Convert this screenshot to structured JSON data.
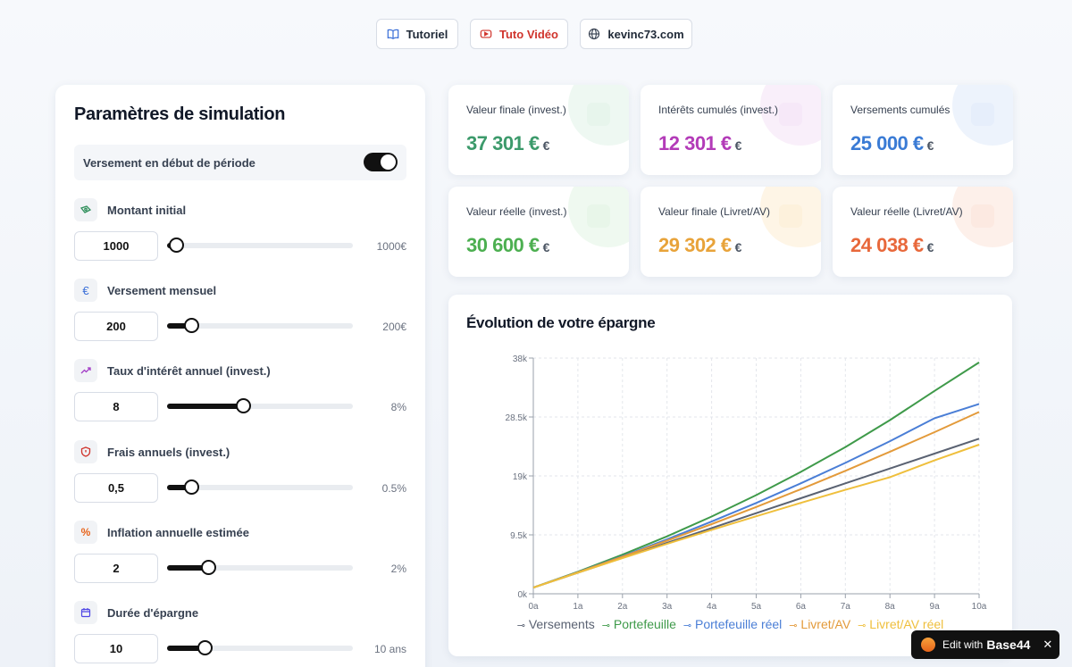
{
  "top_nav": {
    "tutorial": "Tutoriel",
    "video": "Tuto Vidéo",
    "site": "kevinc73.com"
  },
  "params": {
    "title": "Paramètres de simulation",
    "toggle_label": "Versement en début de période",
    "toggle_on": true,
    "items": [
      {
        "label": "Montant initial",
        "input": "1000",
        "value_text": "1000€",
        "level": 0.05,
        "icon": "money-icon",
        "icon_color": "#2f8f5b"
      },
      {
        "label": "Versement mensuel",
        "input": "200",
        "value_text": "200€",
        "level": 0.13,
        "icon": "euro-icon",
        "icon_color": "#3a6fd8"
      },
      {
        "label": "Taux d'intérêt annuel (invest.)",
        "input": "8",
        "value_text": "8%",
        "level": 0.41,
        "icon": "trending-up-icon",
        "icon_color": "#a23cc6"
      },
      {
        "label": "Frais annuels (invest.)",
        "input": "0,5",
        "value_text": "0.5%",
        "level": 0.13,
        "icon": "shield-icon",
        "icon_color": "#d0342c"
      },
      {
        "label": "Inflation annuelle estimée",
        "input": "2",
        "value_text": "2%",
        "level": 0.22,
        "icon": "percent-icon",
        "icon_color": "#e8641b"
      },
      {
        "label": "Durée d'épargne",
        "input": "10",
        "value_text": "10 ans",
        "level": 0.2,
        "icon": "calendar-icon",
        "icon_color": "#4f46e5"
      }
    ]
  },
  "cards": [
    {
      "label": "Valeur finale (invest.)",
      "value": "37 301 €",
      "unit": "€",
      "color": "#3c9a6b",
      "tint": "#e7f5ec"
    },
    {
      "label": "Intérêts cumulés (invest.)",
      "value": "12 301 €",
      "unit": "€",
      "color": "#b33bb8",
      "tint": "#f6e8f8"
    },
    {
      "label": "Versements cumulés",
      "value": "25 000 €",
      "unit": "€",
      "color": "#3a7bd5",
      "tint": "#e6eefb"
    },
    {
      "label": "Valeur réelle (invest.)",
      "value": "30 600 €",
      "unit": "€",
      "color": "#4caf50",
      "tint": "#e8f6e9"
    },
    {
      "label": "Valeur finale (Livret/AV)",
      "value": "29 302 €",
      "unit": "€",
      "color": "#e8a33a",
      "tint": "#fdf1dc"
    },
    {
      "label": "Valeur réelle (Livret/AV)",
      "value": "24 038 €",
      "unit": "€",
      "color": "#e8683b",
      "tint": "#fce9e1"
    }
  ],
  "chart_data": {
    "type": "line",
    "title": "Évolution de votre épargne",
    "categories": [
      "0a",
      "1a",
      "2a",
      "3a",
      "4a",
      "5a",
      "6a",
      "7a",
      "8a",
      "9a",
      "10a"
    ],
    "y_ticks": [
      "0k",
      "9.5k",
      "19k",
      "28.5k",
      "38k"
    ],
    "ylim": [
      0,
      38000
    ],
    "grid": true,
    "legend_position": "bottom",
    "series": [
      {
        "name": "Versements",
        "color": "#5a6272",
        "values": [
          1000,
          3400,
          5800,
          8200,
          10600,
          13000,
          15400,
          17800,
          20200,
          22600,
          25000
        ]
      },
      {
        "name": "Portefeuille",
        "color": "#3f9a4a",
        "values": [
          1000,
          3550,
          6300,
          9250,
          12450,
          15900,
          19650,
          23650,
          28000,
          32700,
          37301
        ]
      },
      {
        "name": "Portefeuille réel",
        "color": "#4a7ed6",
        "values": [
          1000,
          3480,
          6060,
          8780,
          11640,
          14640,
          17800,
          21100,
          24600,
          28300,
          30600
        ]
      },
      {
        "name": "Livret/AV",
        "color": "#e39a3a",
        "values": [
          1000,
          3460,
          5970,
          8560,
          11230,
          13990,
          16850,
          19820,
          22900,
          26060,
          29302
        ]
      },
      {
        "name": "Livret/AV réel",
        "color": "#efbf3c",
        "values": [
          1000,
          3400,
          5750,
          8050,
          10300,
          12500,
          14650,
          16750,
          18800,
          21500,
          24038
        ]
      }
    ]
  },
  "badge": {
    "prefix": "Edit with",
    "brand": "Base44",
    "close": "✕"
  }
}
